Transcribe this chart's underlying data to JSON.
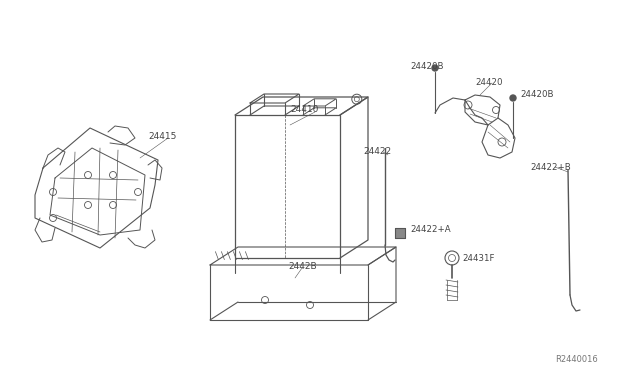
{
  "bg_color": "#ffffff",
  "lc": "#555555",
  "tc": "#444444",
  "fig_width": 6.4,
  "fig_height": 3.72,
  "dpi": 100,
  "watermark": "R2440016",
  "label_24415": "24415",
  "label_24410": "24410",
  "label_2442B": "2442B",
  "label_24422": "24422",
  "label_24422A": "24422+A",
  "label_24422B": "24422+B",
  "label_24420B_top": "24420B",
  "label_24420": "24420",
  "label_24420B_right": "24420B",
  "label_24431F": "24431F"
}
